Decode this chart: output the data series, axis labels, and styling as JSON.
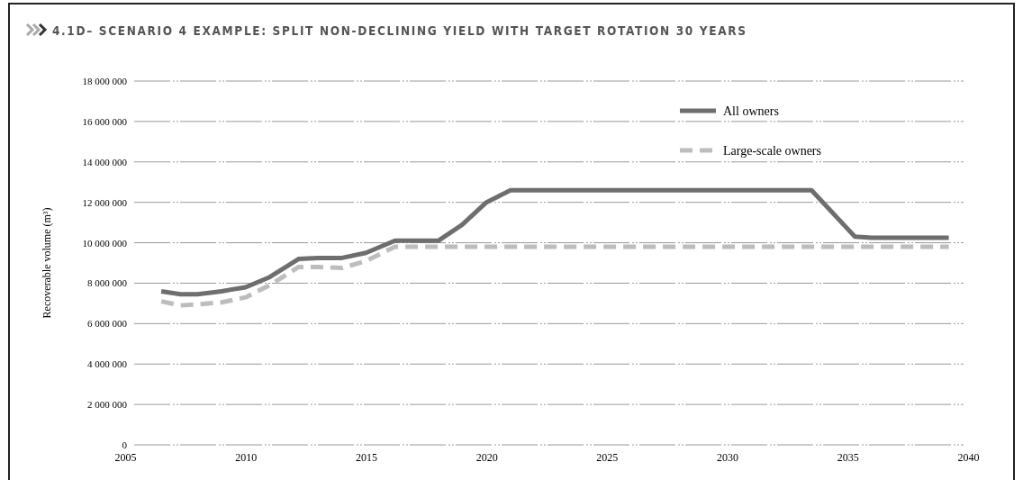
{
  "chart_data": {
    "type": "line",
    "title": "4.1D– SCENARIO 4 EXAMPLE: SPLIT NON-DECLINING YIELD WITH TARGET ROTATION 30 YEARS",
    "ylabel": "Recoverable volume (m³)",
    "xlim": [
      2005,
      2040
    ],
    "xticks": [
      2005,
      2010,
      2015,
      2020,
      2025,
      2030,
      2035,
      2040
    ],
    "ylim": [
      0,
      18000000
    ],
    "yticks": [
      {
        "value": 0,
        "label": "0"
      },
      {
        "value": 2000000,
        "label": "2 000 000"
      },
      {
        "value": 4000000,
        "label": "4 000 000"
      },
      {
        "value": 6000000,
        "label": "6 000 000"
      },
      {
        "value": 8000000,
        "label": "8 000 000"
      },
      {
        "value": 10000000,
        "label": "10 000 000"
      },
      {
        "value": 12000000,
        "label": "12 000 000"
      },
      {
        "value": 14000000,
        "label": "14 000 000"
      },
      {
        "value": 16000000,
        "label": "16 000 000"
      },
      {
        "value": 18000000,
        "label": "18 000 000"
      }
    ],
    "grid": "y",
    "legend": "top right",
    "series": [
      {
        "name": "All owners",
        "color": "#6e6e6e",
        "line_style": "solid",
        "x": [
          2006.5,
          2007.3,
          2008,
          2009,
          2010,
          2011,
          2012.2,
          2013,
          2014,
          2015,
          2016.2,
          2018,
          2019,
          2020,
          2021,
          2033.5,
          2035.3,
          2036,
          2039.2
        ],
        "values": [
          7600000,
          7450000,
          7450000,
          7600000,
          7800000,
          8300000,
          9200000,
          9250000,
          9250000,
          9500000,
          10100000,
          10100000,
          10900000,
          12000000,
          12600000,
          12600000,
          10300000,
          10250000,
          10250000
        ]
      },
      {
        "name": "Large-scale owners",
        "color": "#bdbdbd",
        "line_style": "dashed",
        "x": [
          2006.5,
          2007.3,
          2008,
          2009,
          2010,
          2011,
          2012.2,
          2013,
          2014,
          2015,
          2016.2,
          2039.2
        ],
        "values": [
          7100000,
          6900000,
          6950000,
          7050000,
          7300000,
          7900000,
          8800000,
          8800000,
          8750000,
          9100000,
          9800000,
          9800000
        ]
      }
    ]
  }
}
